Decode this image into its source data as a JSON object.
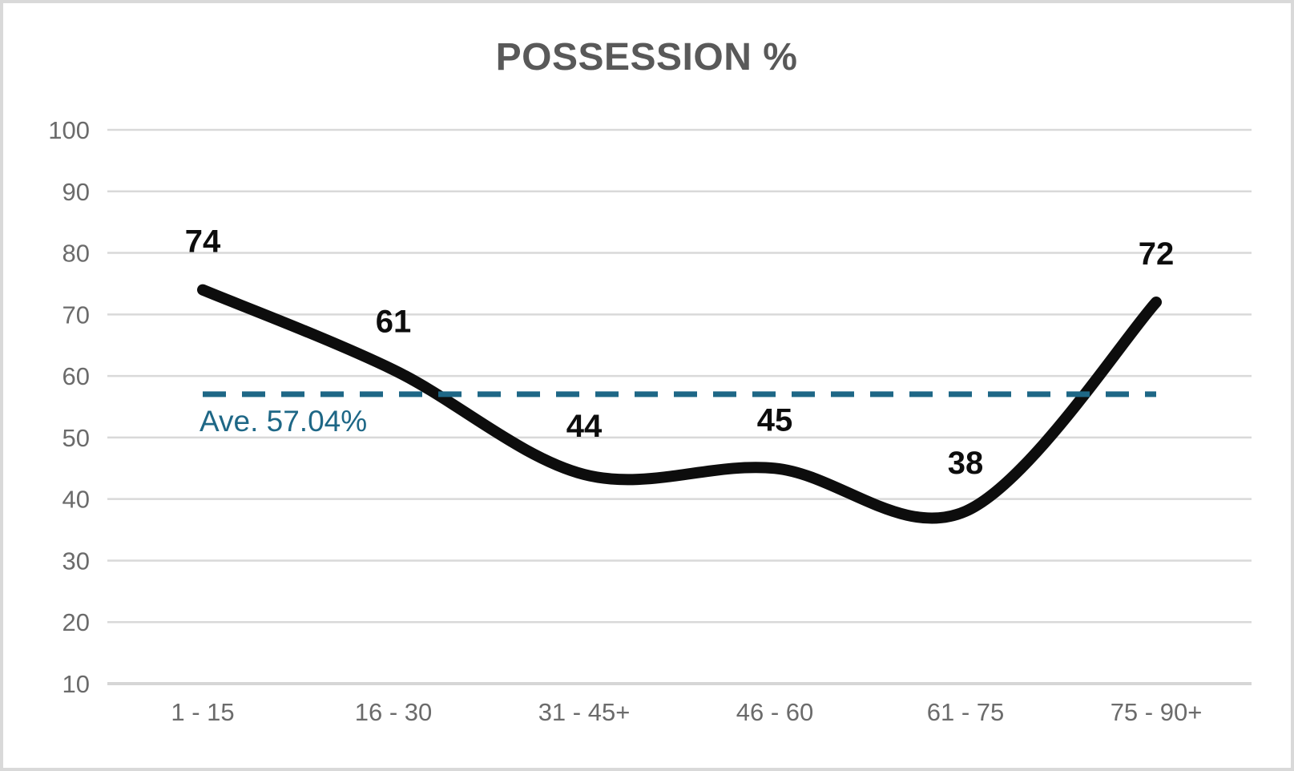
{
  "chart_data": {
    "type": "line",
    "title": "POSSESSION %",
    "categories": [
      "1 - 15",
      "16 - 30",
      "31 - 45+",
      "46 - 60",
      "61 - 75",
      "75 - 90+"
    ],
    "values": [
      74,
      61,
      44,
      45,
      38,
      72
    ],
    "data_labels": [
      "74",
      "61",
      "44",
      "45",
      "38",
      "72"
    ],
    "average": {
      "value": 57.04,
      "label": "Ave. 57.04%"
    },
    "ylim": [
      10,
      100
    ],
    "yticks": [
      10,
      20,
      30,
      40,
      50,
      60,
      70,
      80,
      90,
      100
    ],
    "xlabel": "",
    "ylabel": "",
    "grid": true,
    "legend": false,
    "line_style": "smooth",
    "colors": {
      "line": "#0d0d0d",
      "data_label": "#0d0d0d",
      "accent": "#1e6786",
      "grid": "#d9d9d9",
      "axis_line": "#d6d6d6",
      "axis_text": "#6b6b6b",
      "title_text": "#595959",
      "background": "#ffffff",
      "border": "#d9d9d9"
    }
  }
}
